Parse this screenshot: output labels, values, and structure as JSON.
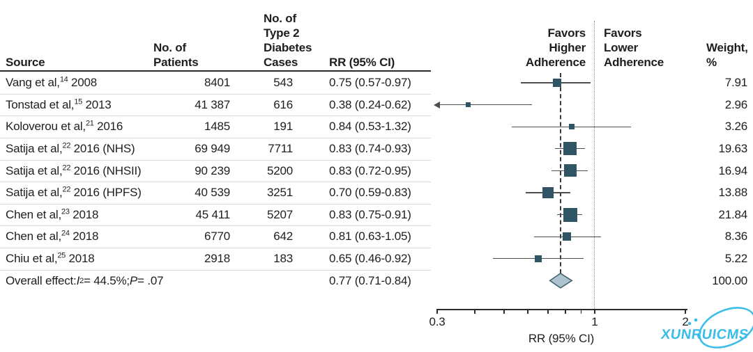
{
  "figure": {
    "headers": {
      "source": "Source",
      "patients": "No. of\nPatients",
      "cases": "No. of\nType 2\nDiabetes\nCases",
      "rr": "RR (95% CI)",
      "favors_higher": "Favors\nHigher\nAdherence",
      "favors_lower": "Favors\nLower\nAdherence",
      "weight": "Weight,\n%"
    },
    "overall_label": {
      "pre": "Overall effect: ",
      "stat": "I",
      "stat_sup": "2",
      "mid": " = 44.5%; ",
      "pvar": "P",
      "post": " = .07"
    },
    "watermark": "XUNRUICMS"
  },
  "chart_data": {
    "type": "forest",
    "x_scale": "log",
    "xlabel": "RR (95% CI)",
    "x_range": [
      0.3,
      2
    ],
    "x_ticks": [
      0.3,
      0.4,
      0.5,
      0.6,
      0.7,
      0.8,
      0.9,
      1,
      2
    ],
    "x_tick_labels": {
      "0.3": "0.3",
      "1": "1",
      "2": "2"
    },
    "reference_line": 1,
    "overall_effect_line": 0.77,
    "favors_left_label": "Favors Higher Adherence",
    "favors_right_label": "Favors Lower Adherence",
    "studies": [
      {
        "source": "Vang et al",
        "ref": "14",
        "year": "2008",
        "patients": "8401",
        "cases": "543",
        "rr": 0.75,
        "ci_low": 0.57,
        "ci_high": 0.97,
        "rr_text": "0.75 (0.57-0.97)",
        "weight": 7.91,
        "weight_text": "7.91"
      },
      {
        "source": "Tonstad et al",
        "ref": "15",
        "year": "2013",
        "patients": "41 387",
        "cases": "616",
        "rr": 0.38,
        "ci_low": 0.24,
        "ci_high": 0.62,
        "rr_text": "0.38 (0.24-0.62)",
        "weight": 2.96,
        "weight_text": "2.96",
        "ci_arrow_left": true
      },
      {
        "source": "Koloverou et al",
        "ref": "21",
        "year": "2016",
        "patients": "1485",
        "cases": "191",
        "rr": 0.84,
        "ci_low": 0.53,
        "ci_high": 1.32,
        "rr_text": "0.84 (0.53-1.32)",
        "weight": 3.26,
        "weight_text": "3.26"
      },
      {
        "source": "Satija et al",
        "ref": "22",
        "year": "2016 (NHS)",
        "patients": "69 949",
        "cases": "7711",
        "rr": 0.83,
        "ci_low": 0.74,
        "ci_high": 0.93,
        "rr_text": "0.83 (0.74-0.93)",
        "weight": 19.63,
        "weight_text": "19.63"
      },
      {
        "source": "Satija et al",
        "ref": "22",
        "year": "2016 (NHSII)",
        "patients": "90 239",
        "cases": "5200",
        "rr": 0.83,
        "ci_low": 0.72,
        "ci_high": 0.95,
        "rr_text": "0.83 (0.72-0.95)",
        "weight": 16.94,
        "weight_text": "16.94"
      },
      {
        "source": "Satija et al",
        "ref": "22",
        "year": "2016 (HPFS)",
        "patients": "40 539",
        "cases": "3251",
        "rr": 0.7,
        "ci_low": 0.59,
        "ci_high": 0.83,
        "rr_text": "0.70 (0.59-0.83)",
        "weight": 13.88,
        "weight_text": "13.88"
      },
      {
        "source": "Chen et al",
        "ref": "23",
        "year": "2018",
        "patients": "45 411",
        "cases": "5207",
        "rr": 0.83,
        "ci_low": 0.75,
        "ci_high": 0.91,
        "rr_text": "0.83 (0.75-0.91)",
        "weight": 21.84,
        "weight_text": "21.84"
      },
      {
        "source": "Chen et al",
        "ref": "24",
        "year": "2018",
        "patients": "6770",
        "cases": "642",
        "rr": 0.81,
        "ci_low": 0.63,
        "ci_high": 1.05,
        "rr_text": "0.81 (0.63-1.05)",
        "weight": 8.36,
        "weight_text": "8.36"
      },
      {
        "source": "Chiu et al",
        "ref": "25",
        "year": "2018",
        "patients": "2918",
        "cases": "183",
        "rr": 0.65,
        "ci_low": 0.46,
        "ci_high": 0.92,
        "rr_text": "0.65 (0.46-0.92)",
        "weight": 5.22,
        "weight_text": "5.22"
      }
    ],
    "overall": {
      "rr": 0.77,
      "ci_low": 0.71,
      "ci_high": 0.84,
      "rr_text": "0.77 (0.71-0.84)",
      "i_squared": "44.5%",
      "p_value": ".07",
      "weight_text": "100.00"
    }
  },
  "colors": {
    "marker": "#2f5464",
    "ci_line": "#4d4d4d",
    "diamond_fill": "#adc3ce",
    "diamond_border": "#44636f",
    "axis": "#2b2b2b",
    "watermark": "#3bbdea"
  }
}
